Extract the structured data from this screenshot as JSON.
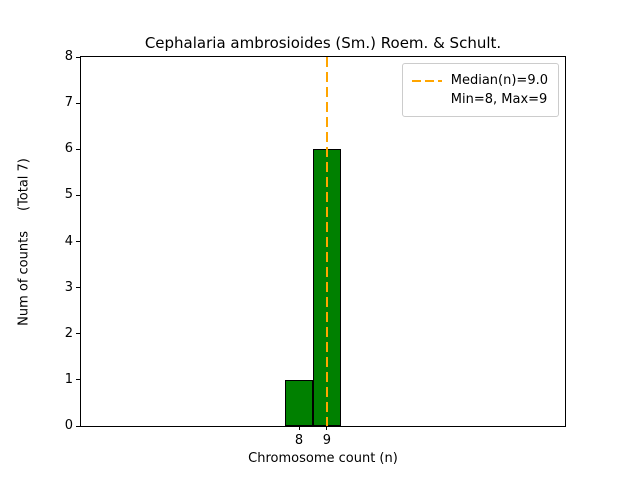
{
  "chart_data": {
    "type": "bar",
    "title": "Cephalaria ambrosioides (Sm.) Roem. & Schult.",
    "xlabel": "Chromosome count (n)",
    "ylabel": "Num of counts",
    "ylabel_total": "(Total 7)",
    "categories": [
      8,
      9
    ],
    "values": [
      1,
      6
    ],
    "total_counts": 7,
    "bar_width": 1,
    "bar_color": "#008000",
    "bar_edge_color": "#000000",
    "xlim": [
      0.18,
      17.54
    ],
    "ylim": [
      0,
      8
    ],
    "xticks": [
      8,
      9
    ],
    "yticks": [
      0,
      1,
      2,
      3,
      4,
      5,
      6,
      7,
      8
    ],
    "grid": false,
    "median_line": {
      "x": 9.0,
      "color": "#FFA500",
      "style": "dashed",
      "width": 2
    },
    "legend": {
      "position": "upper right",
      "entries": [
        {
          "label": "Median(n)=9.0",
          "marker": "dashed-line",
          "color": "#FFA500"
        },
        {
          "label": "Min=8, Max=9",
          "marker": "none"
        }
      ]
    }
  }
}
